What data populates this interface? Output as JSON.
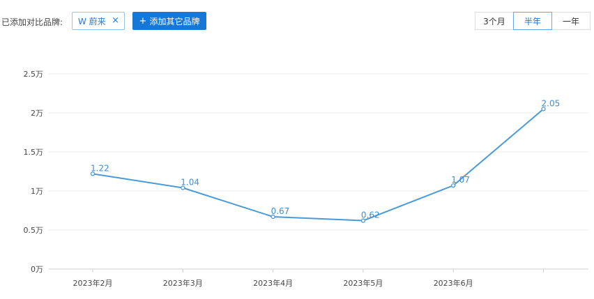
{
  "toolbar": {
    "compare_label": "已添加对比品牌:",
    "brand_tag": "W 蔚来",
    "brand_tag_close": "×",
    "add_button_icon": "+",
    "add_button_label": "添加其它品牌",
    "periods": [
      "3个月",
      "半年",
      "一年"
    ],
    "active_period": "半年"
  },
  "colors": {
    "accent": "#1677d6",
    "line": "#4a9ad8"
  },
  "chart_data": {
    "type": "line",
    "categories": [
      "2023年2月",
      "2023年3月",
      "2023年4月",
      "2023年5月",
      "2023年6月",
      ""
    ],
    "values": [
      1.22,
      1.04,
      0.67,
      0.62,
      1.07,
      2.05
    ],
    "value_labels": [
      "1.22",
      "1.04",
      "0.67",
      "0.62",
      "1.07",
      "2.05"
    ],
    "yticks": [
      0,
      0.5,
      1,
      1.5,
      2,
      2.5
    ],
    "ytick_labels": [
      "0万",
      "0.5万",
      "1万",
      "1.5万",
      "2万",
      "2.5万"
    ],
    "ylim": [
      0,
      2.5
    ],
    "grid": true,
    "legend": false
  }
}
